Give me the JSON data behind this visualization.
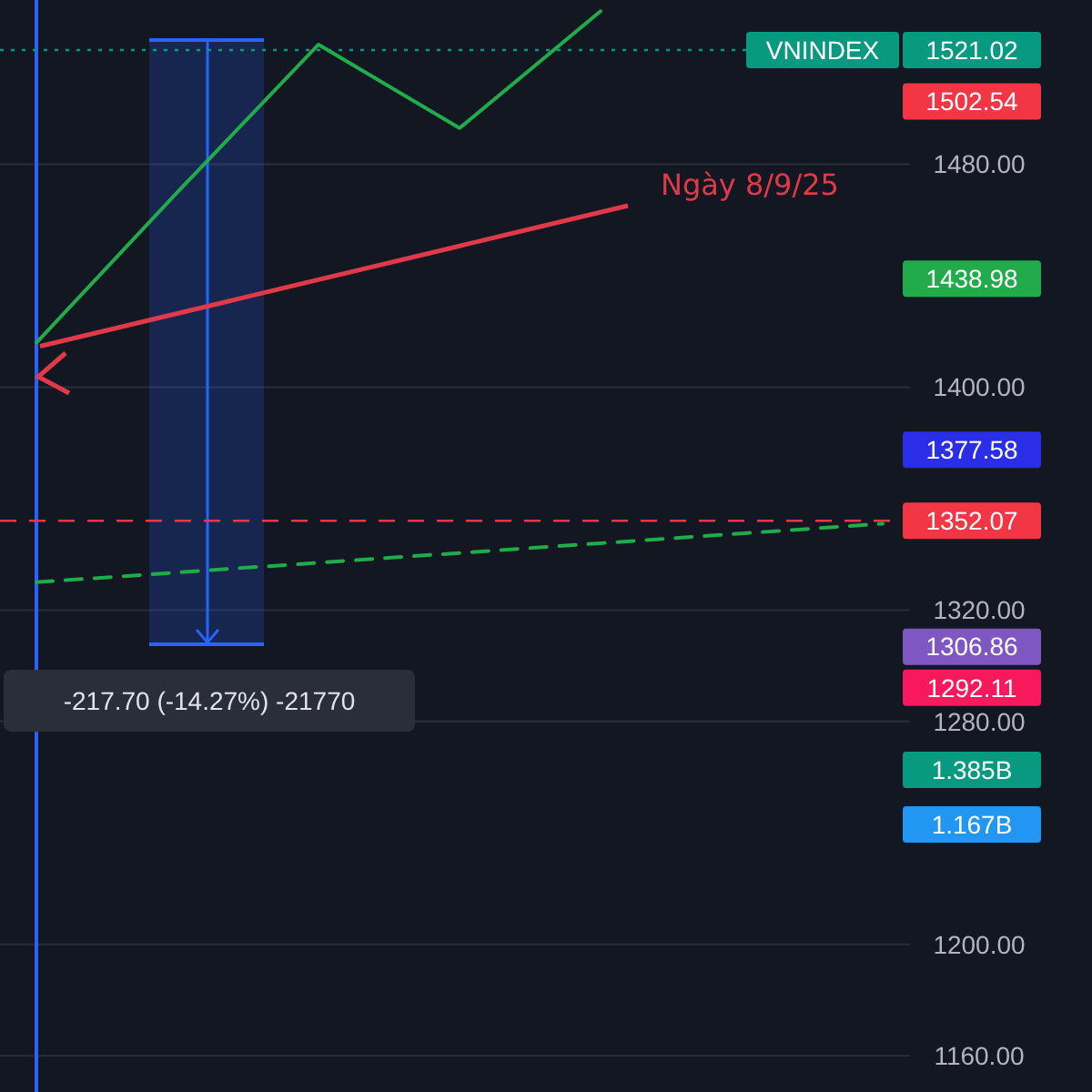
{
  "chart_data": {
    "type": "line",
    "categories": [
      null,
      null,
      null,
      null,
      null,
      null,
      null
    ],
    "series": [
      {
        "color": "#22ab4a",
        "values": [
          1416,
          1470,
          1523,
          1493,
          1535,
          null,
          null
        ]
      },
      {
        "color": "#22ab4a",
        "line_style": "dashed",
        "values": [
          1330,
          1333.5,
          1337,
          1340.5,
          1344,
          1347.5,
          1351
        ]
      }
    ],
    "ylim": [
      1147,
      1539
    ],
    "yticks": [
      {
        "value": 1160,
        "label": "1160.00"
      },
      {
        "value": 1200,
        "label": "1200.00"
      },
      {
        "value": 1280,
        "label": "1280.00"
      },
      {
        "value": 1320,
        "label": "1320.00"
      },
      {
        "value": 1400,
        "label": "1400.00"
      },
      {
        "value": 1480,
        "label": "1480.00"
      }
    ],
    "grid": "y",
    "ref_lines": [
      {
        "axis": "y",
        "value": 1521.02,
        "label": "1521.02",
        "color": "#089981",
        "line_style": "dotted"
      },
      {
        "axis": "y",
        "value": 1352.07,
        "label": "1352.07",
        "color": "#f23645",
        "line_style": "dashed"
      }
    ],
    "annotations": [
      "VNINDEX",
      "1502.54",
      "1438.98",
      "1377.58",
      "1306.86",
      "1292.11",
      "Ngày 8/9/25",
      "-217.70 (-14.27%) -21770",
      "1.385B",
      "1.167B"
    ]
  }
}
